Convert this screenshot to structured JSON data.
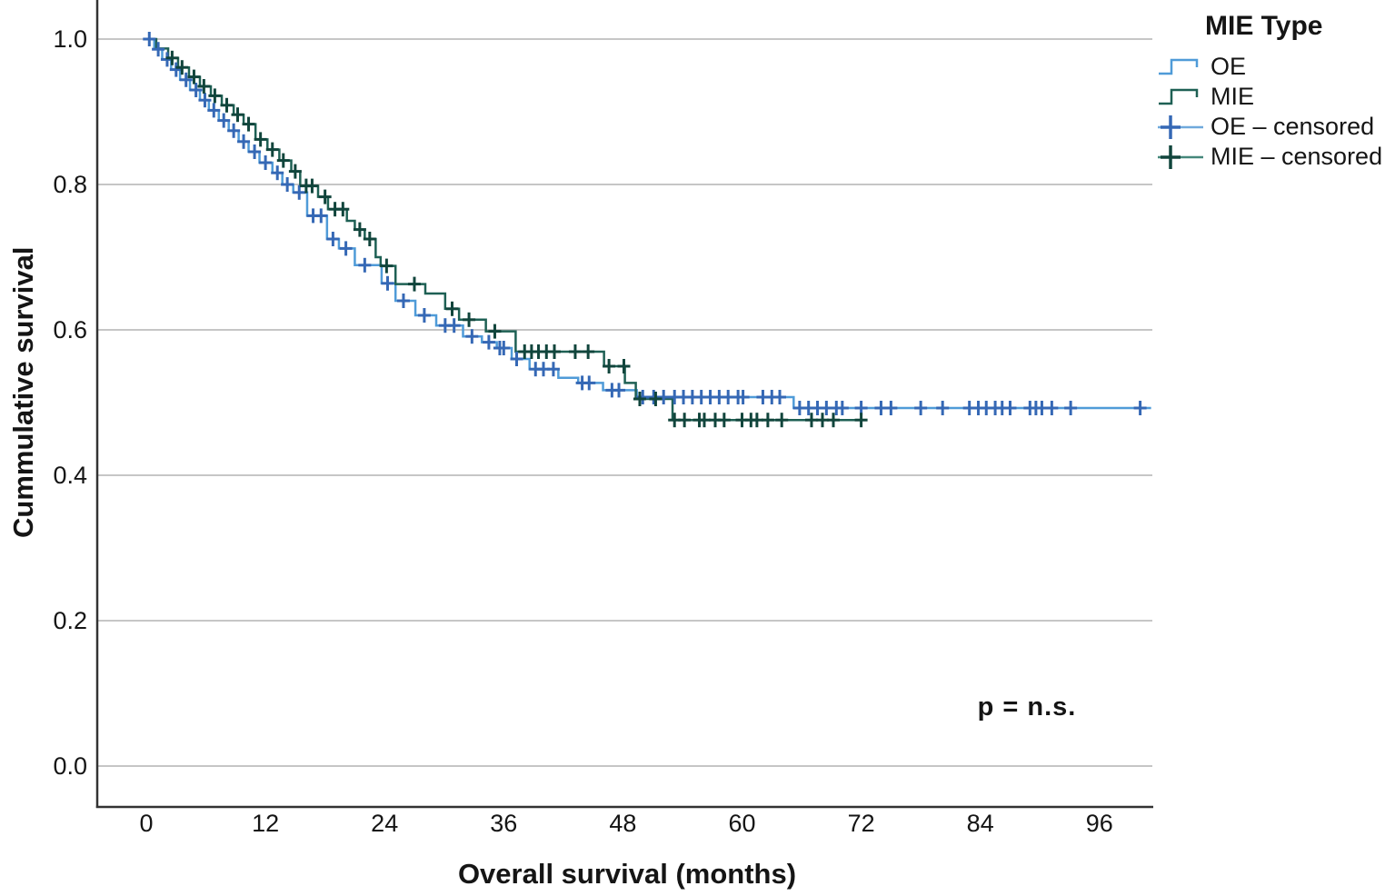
{
  "figure": {
    "legend": {
      "title": "MIE Type",
      "items": [
        {
          "label": "OE",
          "type": "step-line",
          "line_color": "#4F9BD8"
        },
        {
          "label": "MIE",
          "type": "step-line",
          "line_color": "#1E6054"
        },
        {
          "label": "OE – censored",
          "type": "censor-mark",
          "line_color": "#6FA9DC",
          "cross_color": "#3568B5"
        },
        {
          "label": "MIE – censored",
          "type": "censor-mark",
          "line_color": "#45877A",
          "cross_color": "#11453C"
        }
      ]
    }
  },
  "chart_data": {
    "type": "line",
    "subtype": "kaplan_meier_step",
    "title": "",
    "xlabel": "Overall survival (months)",
    "ylabel": "Cummulative survival",
    "x_ticks": [
      0,
      12,
      24,
      36,
      48,
      60,
      72,
      84,
      96
    ],
    "y_ticks": [
      0.0,
      0.2,
      0.4,
      0.6,
      0.8,
      1.0
    ],
    "y_tick_labels": [
      "0.0",
      "0.2",
      "0.4",
      "0.6",
      "0.8",
      "1.0"
    ],
    "xlim": [
      -5,
      102
    ],
    "ylim": [
      -0.056,
      1.054
    ],
    "grid": "horizontal",
    "legend_position": "outside-top-right",
    "annotation": {
      "text": "p = n.s.",
      "x_months": 88.5,
      "y_survival": 0.07
    },
    "colors": {
      "grid": "#C6C6C6",
      "axis": "#333333"
    },
    "series": [
      {
        "name": "OE",
        "line_color": "#4F9BD8",
        "censor_color": "#3568B5",
        "start": [
          0,
          1.0
        ],
        "drops": [
          [
            0.8,
            0.986
          ],
          [
            1.6,
            0.972
          ],
          [
            2.5,
            0.958
          ],
          [
            3.4,
            0.944
          ],
          [
            4.4,
            0.93
          ],
          [
            5.4,
            0.916
          ],
          [
            6.3,
            0.902
          ],
          [
            7.3,
            0.888
          ],
          [
            8.3,
            0.874
          ],
          [
            9.3,
            0.859
          ],
          [
            10.3,
            0.845
          ],
          [
            11.4,
            0.83
          ],
          [
            12.7,
            0.816
          ],
          [
            13.7,
            0.8
          ],
          [
            14.8,
            0.789
          ],
          [
            16.2,
            0.757
          ],
          [
            18.2,
            0.725
          ],
          [
            19.4,
            0.712
          ],
          [
            21.0,
            0.689
          ],
          [
            23.7,
            0.664
          ],
          [
            25.1,
            0.64
          ],
          [
            27.1,
            0.62
          ],
          [
            29.2,
            0.606
          ],
          [
            31.9,
            0.591
          ],
          [
            33.8,
            0.583
          ],
          [
            35.3,
            0.575
          ],
          [
            36.8,
            0.56
          ],
          [
            38.6,
            0.546
          ],
          [
            41.5,
            0.534
          ],
          [
            43.5,
            0.527
          ],
          [
            46.0,
            0.517
          ],
          [
            49.4,
            0.5075
          ],
          [
            65.2,
            0.4925
          ]
        ],
        "end_time": 101.2,
        "censor_times": [
          0.3,
          1.2,
          2.1,
          3.0,
          4.0,
          5.0,
          5.9,
          6.8,
          7.8,
          8.8,
          9.8,
          10.9,
          12.0,
          13.2,
          14.2,
          15.4,
          16.8,
          17.6,
          18.8,
          20.1,
          22.0,
          24.3,
          25.9,
          28.0,
          30.1,
          31.0,
          32.8,
          34.5,
          35.6,
          36.0,
          37.3,
          39.2,
          40.0,
          41.0,
          43.9,
          44.6,
          46.9,
          47.6,
          50.0,
          51.1,
          52.1,
          53.2,
          54.1,
          55.0,
          55.9,
          56.8,
          57.7,
          58.6,
          59.6,
          60.1,
          62.1,
          63.0,
          63.8,
          65.8,
          66.7,
          67.6,
          68.5,
          69.5,
          70.1,
          72.0,
          74.0,
          75.0,
          78.0,
          80.2,
          82.9,
          83.8,
          84.6,
          85.5,
          86.2,
          87.0,
          89.0,
          89.6,
          90.2,
          91.2,
          93.1,
          100.1
        ]
      },
      {
        "name": "MIE",
        "line_color": "#1E6054",
        "censor_color": "#11453C",
        "start": [
          0,
          1.0
        ],
        "drops": [
          [
            1.0,
            0.987
          ],
          [
            2.2,
            0.974
          ],
          [
            3.2,
            0.961
          ],
          [
            4.3,
            0.948
          ],
          [
            5.4,
            0.935
          ],
          [
            6.5,
            0.922
          ],
          [
            7.6,
            0.909
          ],
          [
            8.8,
            0.896
          ],
          [
            9.8,
            0.883
          ],
          [
            11.0,
            0.862
          ],
          [
            12.2,
            0.848
          ],
          [
            13.4,
            0.833
          ],
          [
            14.6,
            0.818
          ],
          [
            15.5,
            0.798
          ],
          [
            17.3,
            0.783
          ],
          [
            18.3,
            0.766
          ],
          [
            20.2,
            0.75
          ],
          [
            21.0,
            0.738
          ],
          [
            22.0,
            0.725
          ],
          [
            23.1,
            0.7
          ],
          [
            23.6,
            0.688
          ],
          [
            25.1,
            0.663
          ],
          [
            28.1,
            0.65
          ],
          [
            30.1,
            0.629
          ],
          [
            31.5,
            0.614
          ],
          [
            34.2,
            0.598
          ],
          [
            37.2,
            0.57
          ],
          [
            46.1,
            0.55
          ],
          [
            48.2,
            0.527
          ],
          [
            49.3,
            0.505
          ],
          [
            53.0,
            0.476
          ]
        ],
        "end_time": 72.5,
        "censor_times": [
          2.6,
          3.6,
          4.8,
          5.8,
          6.9,
          8.1,
          9.2,
          10.3,
          11.5,
          12.7,
          13.8,
          15.0,
          16.1,
          16.7,
          18.0,
          19.0,
          19.8,
          21.5,
          22.5,
          24.2,
          27.0,
          30.8,
          32.5,
          35.1,
          38.1,
          38.8,
          39.5,
          40.3,
          41.1,
          43.2,
          44.5,
          46.6,
          48.1,
          49.7,
          51.3,
          53.2,
          54.2,
          55.7,
          56.2,
          57.3,
          58.2,
          60.0,
          60.9,
          61.5,
          62.6,
          64.0,
          67.0,
          68.1,
          69.2,
          72.0
        ]
      }
    ]
  }
}
